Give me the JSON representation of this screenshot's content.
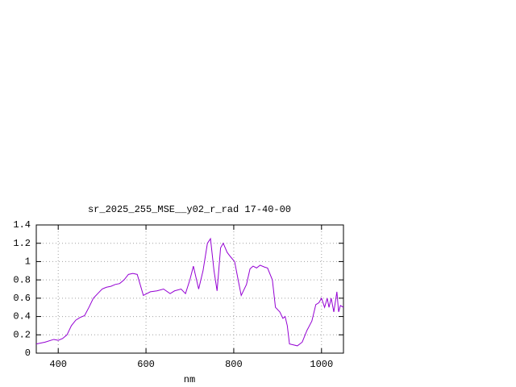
{
  "chart_data": {
    "type": "line",
    "title": "sr_2025_255_MSE__y02_r_rad 17-40-00",
    "xlabel": "nm",
    "series": [
      {
        "color": "#9400d3",
        "x": [
          350,
          370,
          390,
          400,
          410,
          420,
          430,
          440,
          450,
          460,
          470,
          480,
          490,
          500,
          510,
          520,
          530,
          540,
          550,
          560,
          570,
          580,
          594,
          610,
          625,
          640,
          655,
          665,
          680,
          690,
          700,
          708,
          720,
          730,
          740,
          747,
          755,
          762,
          770,
          776,
          785,
          793,
          802,
          810,
          817,
          829,
          837,
          844,
          852,
          860,
          870,
          877,
          888,
          895,
          905,
          912,
          917,
          922,
          927,
          945,
          956,
          967,
          978,
          987,
          994,
          1000,
          1007,
          1013,
          1017,
          1022,
          1028,
          1035,
          1039,
          1043,
          1050
        ],
        "values": [
          0.1,
          0.12,
          0.15,
          0.14,
          0.16,
          0.2,
          0.3,
          0.36,
          0.39,
          0.41,
          0.5,
          0.6,
          0.65,
          0.7,
          0.72,
          0.73,
          0.75,
          0.76,
          0.8,
          0.86,
          0.87,
          0.86,
          0.63,
          0.67,
          0.68,
          0.7,
          0.65,
          0.68,
          0.7,
          0.65,
          0.8,
          0.95,
          0.7,
          0.9,
          1.2,
          1.25,
          0.9,
          0.68,
          1.15,
          1.2,
          1.1,
          1.05,
          1.0,
          0.8,
          0.63,
          0.75,
          0.92,
          0.95,
          0.93,
          0.96,
          0.94,
          0.93,
          0.8,
          0.5,
          0.45,
          0.38,
          0.4,
          0.3,
          0.1,
          0.08,
          0.12,
          0.25,
          0.35,
          0.53,
          0.55,
          0.6,
          0.5,
          0.6,
          0.5,
          0.6,
          0.45,
          0.67,
          0.45,
          0.52,
          0.5
        ]
      }
    ],
    "xlim": [
      350,
      1050
    ],
    "xticks": [
      400,
      600,
      800,
      1000
    ],
    "ylim": [
      0,
      1.4
    ],
    "yticks": [
      0,
      0.2,
      0.4,
      0.6,
      0.8,
      1,
      1.2,
      1.4
    ],
    "grid": true
  }
}
